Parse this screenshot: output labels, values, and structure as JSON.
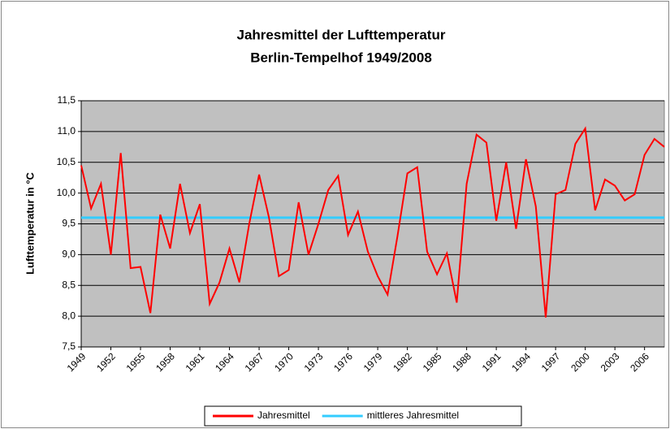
{
  "chart_data": {
    "type": "line",
    "title": "Jahresmittel der Lufttemperatur",
    "subtitle": "Berlin-Tempelhof 1949/2008",
    "y_label": "Lufttemperatur in °C",
    "x": [
      1949,
      1950,
      1951,
      1952,
      1953,
      1954,
      1955,
      1956,
      1957,
      1958,
      1959,
      1960,
      1961,
      1962,
      1963,
      1964,
      1965,
      1966,
      1967,
      1968,
      1969,
      1970,
      1971,
      1972,
      1973,
      1974,
      1975,
      1976,
      1977,
      1978,
      1979,
      1980,
      1981,
      1982,
      1983,
      1984,
      1985,
      1986,
      1987,
      1988,
      1989,
      1990,
      1991,
      1992,
      1993,
      1994,
      1995,
      1996,
      1997,
      1998,
      1999,
      2000,
      2001,
      2002,
      2003,
      2004,
      2005,
      2006,
      2007,
      2008
    ],
    "series": [
      {
        "name": "Jahresmittel",
        "color": "#ff0000",
        "values": [
          10.45,
          9.75,
          10.15,
          9.0,
          10.65,
          8.78,
          8.8,
          8.05,
          9.65,
          9.1,
          10.15,
          9.35,
          9.82,
          8.2,
          8.55,
          9.1,
          8.55,
          9.5,
          10.3,
          9.6,
          8.65,
          8.75,
          9.85,
          9.0,
          9.5,
          10.05,
          10.28,
          9.32,
          9.7,
          9.05,
          8.65,
          8.35,
          9.3,
          10.32,
          10.42,
          9.05,
          8.68,
          9.02,
          8.22,
          10.15,
          10.95,
          10.82,
          9.55,
          10.5,
          9.42,
          10.55,
          9.78,
          7.98,
          9.98,
          10.05,
          10.8,
          11.05,
          9.72,
          10.22,
          10.12,
          9.88,
          9.98,
          10.62,
          10.88,
          10.75
        ]
      },
      {
        "name": "mittleres Jahresmittel",
        "color": "#33ccff",
        "values": [
          9.6,
          9.6,
          9.6,
          9.6,
          9.6,
          9.6,
          9.6,
          9.6,
          9.6,
          9.6,
          9.6,
          9.6,
          9.6,
          9.6,
          9.6,
          9.6,
          9.6,
          9.6,
          9.6,
          9.6,
          9.6,
          9.6,
          9.6,
          9.6,
          9.6,
          9.6,
          9.6,
          9.6,
          9.6,
          9.6,
          9.6,
          9.6,
          9.6,
          9.6,
          9.6,
          9.6,
          9.6,
          9.6,
          9.6,
          9.6,
          9.6,
          9.6,
          9.6,
          9.6,
          9.6,
          9.6,
          9.6,
          9.6,
          9.6,
          9.6,
          9.6,
          9.6,
          9.6,
          9.6,
          9.6,
          9.6,
          9.6,
          9.6,
          9.6,
          9.6
        ]
      }
    ],
    "xlim": [
      1949,
      2008
    ],
    "xticks": [
      1949,
      1952,
      1955,
      1958,
      1961,
      1964,
      1967,
      1970,
      1973,
      1976,
      1979,
      1982,
      1985,
      1988,
      1991,
      1994,
      1997,
      2000,
      2003,
      2006
    ],
    "ylim": [
      7.5,
      11.5
    ],
    "yticks": [
      {
        "value": 7.5,
        "label": "7,5"
      },
      {
        "value": 8,
        "label": "8,0"
      },
      {
        "value": 8.5,
        "label": "8,5"
      },
      {
        "value": 9,
        "label": "9,0"
      },
      {
        "value": 9.5,
        "label": "9,5"
      },
      {
        "value": 10,
        "label": "10,0"
      },
      {
        "value": 10.5,
        "label": "10,5"
      },
      {
        "value": 11,
        "label": "11,0"
      },
      {
        "value": 11.5,
        "label": "11,5"
      }
    ],
    "grid": true,
    "plot_background": "#c0c0c0",
    "legend": "bottom"
  }
}
